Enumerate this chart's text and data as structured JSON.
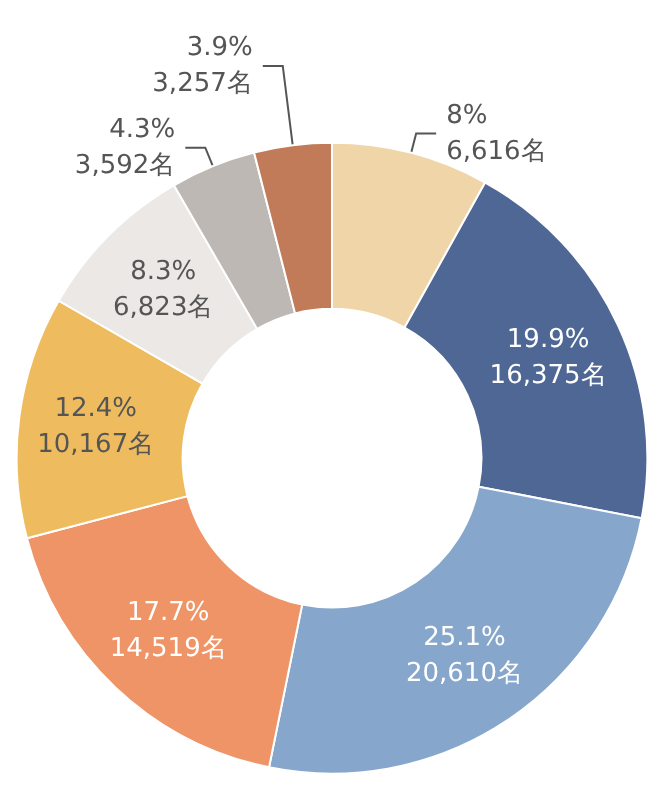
{
  "chart_data": {
    "type": "donut",
    "categories": [
      null,
      null,
      null,
      null,
      null,
      null,
      null,
      null
    ],
    "values": [
      6616,
      16375,
      20610,
      14519,
      10167,
      6823,
      3592,
      3257
    ],
    "value_labels": [
      "8%\n6,616名",
      "19.9%\n16,375名",
      "25.1%\n20,610名",
      "17.7%\n14,519名",
      "12.4%\n10,167名",
      "8.3%\n6,823名",
      "4.3%\n3,592名",
      "3.9%\n3,257名"
    ],
    "colors": [
      "#f0d5a8",
      "#4f6795",
      "#87a6cc",
      "#ef9466",
      "#eebc5f",
      "#ece8e5",
      "#bdb8b4",
      "#c17b58"
    ]
  }
}
